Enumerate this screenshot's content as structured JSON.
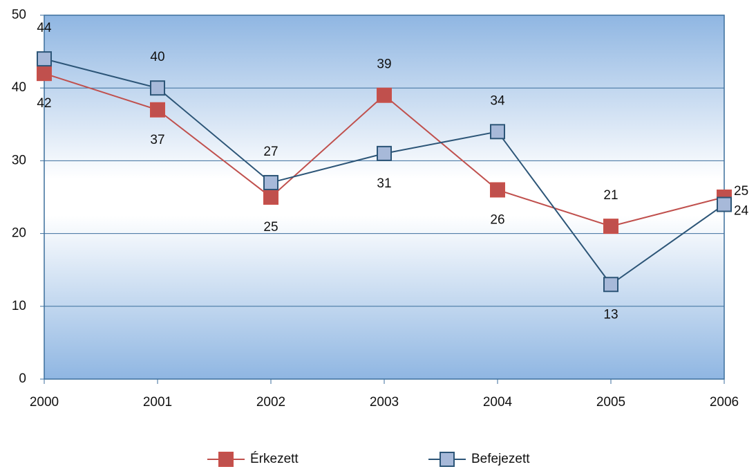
{
  "chart_data": {
    "type": "line",
    "categories": [
      "2000",
      "2001",
      "2002",
      "2003",
      "2004",
      "2005",
      "2006"
    ],
    "series": [
      {
        "name": "Érkezett",
        "color": "#c0504d",
        "values": [
          42,
          37,
          25,
          39,
          26,
          21,
          25
        ]
      },
      {
        "name": "Befejezett",
        "color": "#2c5577",
        "values": [
          44,
          40,
          27,
          31,
          34,
          13,
          24
        ]
      }
    ],
    "ylim": [
      0,
      50
    ],
    "yticks": [
      0,
      10,
      20,
      30,
      40,
      50
    ],
    "grid": true,
    "legend": "bottom"
  }
}
